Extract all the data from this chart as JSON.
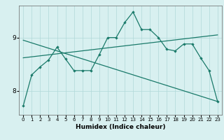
{
  "xlabel": "Humidex (Indice chaleur)",
  "bg_color": "#d8f0f0",
  "grid_color": "#b0d8d8",
  "line_color": "#1a7a6a",
  "xlim": [
    -0.5,
    23.5
  ],
  "ylim": [
    7.55,
    9.6
  ],
  "yticks": [
    8,
    9
  ],
  "xticks": [
    0,
    1,
    2,
    3,
    4,
    5,
    6,
    7,
    8,
    9,
    10,
    11,
    12,
    13,
    14,
    15,
    16,
    17,
    18,
    19,
    20,
    21,
    22,
    23
  ],
  "curve1_x": [
    0,
    1,
    2,
    3,
    4,
    5,
    6,
    7,
    8,
    9,
    10,
    11,
    12,
    13,
    14,
    15,
    16,
    17,
    18,
    19,
    20,
    21,
    22,
    23
  ],
  "curve1_y": [
    7.72,
    8.3,
    8.45,
    8.58,
    8.82,
    8.6,
    8.38,
    8.38,
    8.38,
    8.68,
    9.0,
    9.0,
    9.28,
    9.48,
    9.15,
    9.15,
    9.0,
    8.78,
    8.75,
    8.88,
    8.88,
    8.62,
    8.38,
    7.8
  ],
  "curve2_x": [
    0,
    23
  ],
  "curve2_y": [
    8.62,
    9.05
  ],
  "curve3_x": [
    0,
    23
  ],
  "curve3_y": [
    8.95,
    7.8
  ]
}
